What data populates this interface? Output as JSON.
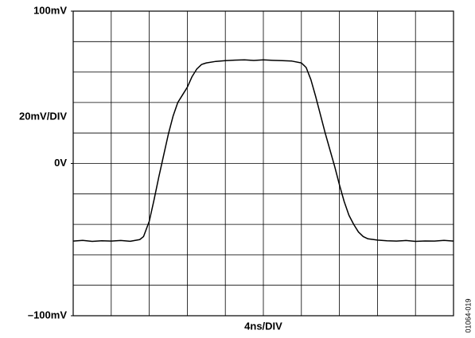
{
  "chart_data": {
    "type": "line",
    "y_label": "20mV/DIV",
    "x_label": "4ns/DIV",
    "figure_id": "01064-019",
    "xlim": [
      0,
      40
    ],
    "ylim": [
      -100,
      100
    ],
    "yticks": [
      {
        "value": 100,
        "label": "100mV"
      },
      {
        "value": 0,
        "label": "0V"
      },
      {
        "value": -100,
        "label": "–100mV"
      }
    ],
    "xgrid": [
      0,
      4,
      8,
      12,
      16,
      20,
      24,
      28,
      32,
      36,
      40
    ],
    "ygrid": [
      -100,
      -80,
      -60,
      -40,
      -20,
      0,
      20,
      40,
      60,
      80,
      100
    ],
    "color": "#000000",
    "x": [
      0,
      1,
      2,
      3,
      4,
      5,
      6,
      7,
      7.4,
      8,
      8.5,
      9,
      9.5,
      10,
      10.5,
      11,
      11.5,
      12,
      12.5,
      13,
      13.5,
      14,
      15,
      16,
      17,
      18,
      19,
      20,
      21,
      22,
      23,
      24,
      24.5,
      25,
      25.5,
      26,
      26.5,
      27,
      27.5,
      28,
      28.5,
      29,
      29.5,
      30,
      30.5,
      31,
      32,
      33,
      34,
      35,
      36,
      37,
      38,
      39,
      40
    ],
    "values": [
      -51,
      -50.5,
      -51.2,
      -50.8,
      -51,
      -50.6,
      -51.1,
      -50,
      -48,
      -38,
      -24,
      -9,
      5,
      19,
      31,
      40,
      45,
      50,
      57,
      62,
      65,
      66,
      67,
      67.5,
      67.8,
      68,
      67.6,
      68,
      67.7,
      67.5,
      67.2,
      66,
      63,
      55,
      44,
      32,
      20,
      9,
      -2,
      -14,
      -25,
      -34,
      -40,
      -45,
      -48,
      -49.5,
      -50.3,
      -50.8,
      -51,
      -50.6,
      -51.2,
      -50.9,
      -51,
      -50.5,
      -51
    ]
  }
}
